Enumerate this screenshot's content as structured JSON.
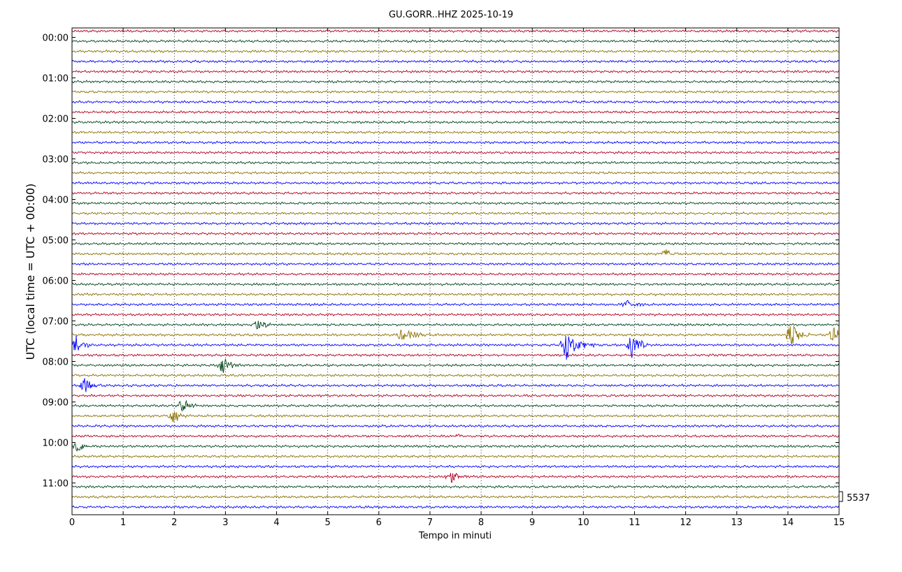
{
  "chart_data": {
    "type": "line",
    "title": "GU.GORR..HHZ 2025-10-19",
    "xlabel": "Tempo in minuti",
    "ylabel": "UTC (local time = UTC + 00:00)",
    "xlim": [
      0,
      15
    ],
    "x_ticks": [
      "0",
      "1",
      "2",
      "3",
      "4",
      "5",
      "6",
      "7",
      "8",
      "9",
      "10",
      "11",
      "12",
      "13",
      "14",
      "15"
    ],
    "y_ticks": [
      "00:00",
      "01:00",
      "02:00",
      "03:00",
      "04:00",
      "05:00",
      "06:00",
      "07:00",
      "08:00",
      "09:00",
      "10:00",
      "11:00"
    ],
    "trace_count": 48,
    "trace_interval_minutes": 15,
    "colors": [
      "#b00020",
      "#00441b",
      "#8a7200",
      "#0000ff"
    ],
    "grid": "vertical-dotted",
    "scale_value": "5537",
    "events": [
      {
        "trace": 22,
        "minute": 11.6,
        "amp": 0.45,
        "dur": 0.35
      },
      {
        "trace": 27,
        "minute": 10.85,
        "amp": 0.45,
        "dur": 0.45
      },
      {
        "trace": 29,
        "minute": 3.65,
        "amp": 0.6,
        "dur": 0.45
      },
      {
        "trace": 30,
        "minute": 6.45,
        "amp": 0.65,
        "dur": 0.7
      },
      {
        "trace": 30,
        "minute": 14.05,
        "amp": 1.2,
        "dur": 0.45
      },
      {
        "trace": 30,
        "minute": 14.9,
        "amp": 0.9,
        "dur": 0.3
      },
      {
        "trace": 31,
        "minute": 0.08,
        "amp": 1.0,
        "dur": 0.3
      },
      {
        "trace": 31,
        "minute": 9.65,
        "amp": 1.6,
        "dur": 0.6
      },
      {
        "trace": 31,
        "minute": 10.95,
        "amp": 1.3,
        "dur": 0.45
      },
      {
        "trace": 33,
        "minute": 2.95,
        "amp": 0.9,
        "dur": 0.4
      },
      {
        "trace": 35,
        "minute": 0.25,
        "amp": 0.9,
        "dur": 0.35
      },
      {
        "trace": 37,
        "minute": 2.15,
        "amp": 0.75,
        "dur": 0.4
      },
      {
        "trace": 38,
        "minute": 1.98,
        "amp": 0.85,
        "dur": 0.35
      },
      {
        "trace": 40,
        "minute": 7.55,
        "amp": 0.2,
        "dur": 0.25
      },
      {
        "trace": 41,
        "minute": 0.12,
        "amp": 0.6,
        "dur": 0.3
      },
      {
        "trace": 44,
        "minute": 7.4,
        "amp": 0.6,
        "dur": 0.4
      }
    ]
  }
}
